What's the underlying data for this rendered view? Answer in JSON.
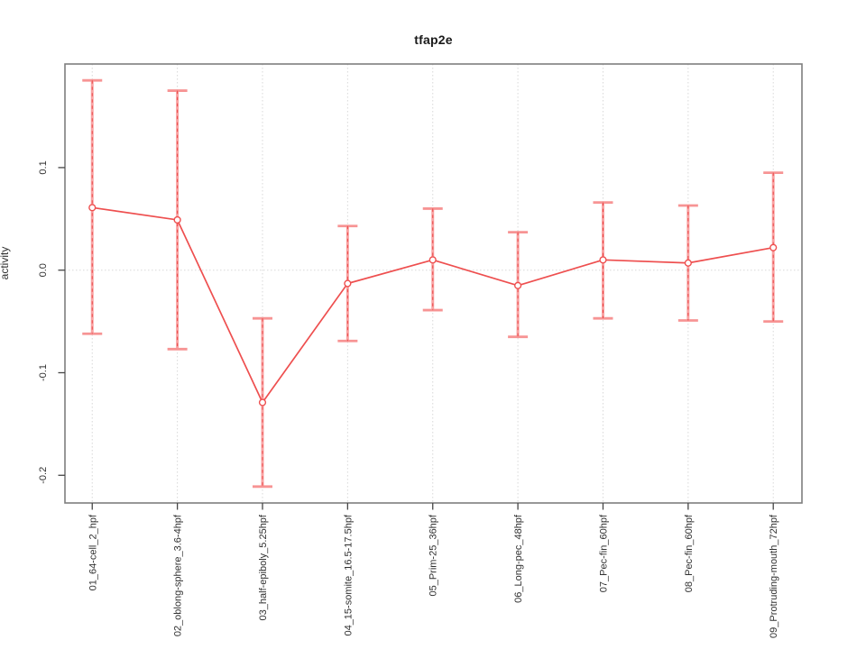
{
  "title": "tfap2e",
  "chart_data": {
    "type": "line",
    "title": "tfap2e",
    "xlabel": "",
    "ylabel": "activity",
    "categories": [
      "01_64-cell_2_hpf",
      "02_oblong-sphere_3.6-4hpf",
      "03_half-epiboly_5.25hpf",
      "04_15-somite_16.5-17.5hpf",
      "05_Prim-25_36hpf",
      "06_Long-pec_48hpf",
      "07_Pec-fin_60hpf",
      "08_Pec-fin_60hpf",
      "09_Protruding-mouth_72hpf"
    ],
    "series": [
      {
        "name": "activity",
        "values": [
          0.061,
          0.049,
          -0.129,
          -0.013,
          0.01,
          -0.015,
          0.01,
          0.007,
          0.022
        ],
        "error_upper": [
          0.185,
          0.175,
          -0.047,
          0.043,
          0.06,
          0.037,
          0.066,
          0.063,
          0.095
        ],
        "error_lower": [
          -0.062,
          -0.077,
          -0.211,
          -0.069,
          -0.039,
          -0.065,
          -0.047,
          -0.049,
          -0.05
        ]
      }
    ],
    "yticks": [
      0.1,
      0.0,
      -0.1,
      -0.2
    ],
    "ytick_labels": [
      "0.1",
      "0.0",
      "-0.1",
      "-0.2"
    ],
    "ylim": [
      -0.227,
      0.201
    ],
    "grid": "vertical dotted line at each category; horizontal dotted line at y=0",
    "legend": "none",
    "marker": "open-circle",
    "colors": {
      "line": "#ee4f4f",
      "marker": "#ee4f4f",
      "error_bar": "#f9a2a2",
      "error_cap": "#f79494",
      "error_dash": "#e94848",
      "grid": "#d8d8d8",
      "box": "#7e7e7e",
      "tick": "#454545",
      "text": "#303030"
    }
  }
}
